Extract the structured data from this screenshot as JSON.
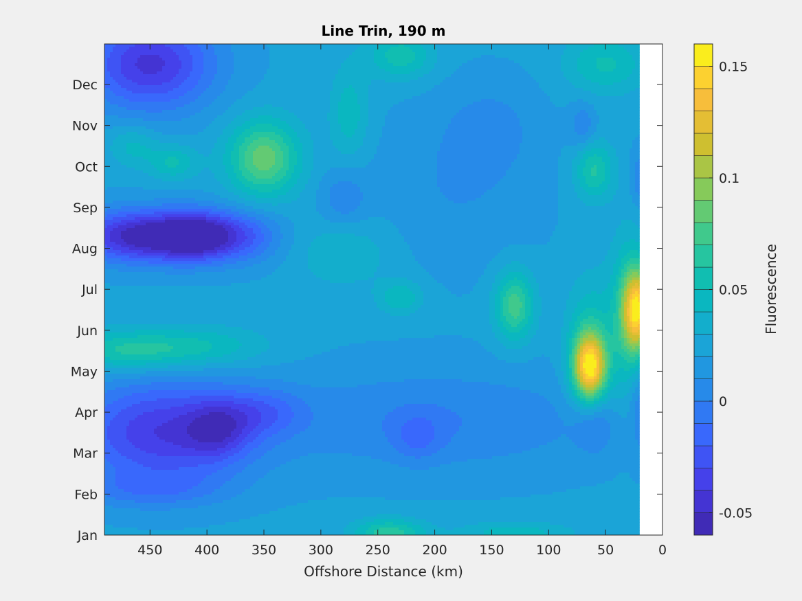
{
  "chart_data": {
    "type": "heatmap",
    "title": "Line Trin, 190 m",
    "xlabel": "Offshore Distance (km)",
    "ylabel": "",
    "colorbar_label": "Fluorescence",
    "x_reversed": true,
    "xlim": [
      0,
      490
    ],
    "data_xlim": [
      20,
      490
    ],
    "x_ticks": [
      450,
      400,
      350,
      300,
      250,
      200,
      150,
      100,
      50,
      0
    ],
    "y_ticks": [
      "Jan",
      "Feb",
      "Mar",
      "Apr",
      "May",
      "Jun",
      "Jul",
      "Aug",
      "Sep",
      "Oct",
      "Nov",
      "Dec"
    ],
    "clim": [
      -0.06,
      0.16
    ],
    "colorbar_ticks": [
      -0.05,
      0,
      0.05,
      0.1,
      0.15
    ],
    "colorbar_tick_labels": [
      "-0.05",
      "0",
      "0.05",
      "0.1",
      "0.15"
    ],
    "colormap": "parula",
    "contour_levels": 22,
    "grid": false,
    "field": {
      "background": 0.022,
      "features": [
        {
          "x": 450,
          "month": 11.5,
          "sx": 40,
          "sy": 0.8,
          "value": -0.065
        },
        {
          "x": 450,
          "month": 7.3,
          "sx": 45,
          "sy": 0.45,
          "value": -0.085
        },
        {
          "x": 410,
          "month": 7.3,
          "sx": 20,
          "sy": 0.4,
          "value": -0.045
        },
        {
          "x": 370,
          "month": 7.3,
          "sx": 25,
          "sy": 0.45,
          "value": -0.035
        },
        {
          "x": 440,
          "month": 2.5,
          "sx": 55,
          "sy": 0.9,
          "value": -0.06
        },
        {
          "x": 390,
          "month": 2.6,
          "sx": 20,
          "sy": 0.5,
          "value": -0.035
        },
        {
          "x": 350,
          "month": 3,
          "sx": 25,
          "sy": 0.4,
          "value": -0.025
        },
        {
          "x": 450,
          "month": 1.1,
          "sx": 45,
          "sy": 0.3,
          "value": -0.02
        },
        {
          "x": 470,
          "month": 4.5,
          "sx": 40,
          "sy": 0.35,
          "value": 0.04
        },
        {
          "x": 400,
          "month": 4.6,
          "sx": 40,
          "sy": 0.35,
          "value": 0.025
        },
        {
          "x": 350,
          "month": 9.2,
          "sx": 22,
          "sy": 0.65,
          "value": 0.065
        },
        {
          "x": 430,
          "month": 9.1,
          "sx": 15,
          "sy": 0.3,
          "value": 0.03
        },
        {
          "x": 465,
          "month": 9.5,
          "sx": 15,
          "sy": 0.35,
          "value": 0.022
        },
        {
          "x": 275,
          "month": 10.3,
          "sx": 12,
          "sy": 0.8,
          "value": 0.025
        },
        {
          "x": 230,
          "month": 11.7,
          "sx": 20,
          "sy": 0.4,
          "value": 0.035
        },
        {
          "x": 280,
          "month": 6.9,
          "sx": 30,
          "sy": 0.6,
          "value": 0.018
        },
        {
          "x": 230,
          "month": 5.8,
          "sx": 14,
          "sy": 0.3,
          "value": 0.028
        },
        {
          "x": 130,
          "month": 5.6,
          "sx": 12,
          "sy": 0.6,
          "value": 0.055
        },
        {
          "x": 240,
          "month": 0.05,
          "sx": 22,
          "sy": 0.25,
          "value": 0.045
        },
        {
          "x": 130,
          "month": 0.05,
          "sx": 35,
          "sy": 0.2,
          "value": 0.025
        },
        {
          "x": 64,
          "month": 4.1,
          "sx": 10,
          "sy": 0.55,
          "value": 0.115
        },
        {
          "x": 64,
          "month": 4.6,
          "sx": 14,
          "sy": 1.1,
          "value": 0.035
        },
        {
          "x": 22,
          "month": 5.5,
          "sx": 9,
          "sy": 0.7,
          "value": 0.11
        },
        {
          "x": 30,
          "month": 5.3,
          "sx": 12,
          "sy": 1.4,
          "value": 0.035
        },
        {
          "x": 60,
          "month": 8.9,
          "sx": 12,
          "sy": 0.5,
          "value": 0.04
        },
        {
          "x": 50,
          "month": 11.5,
          "sx": 25,
          "sy": 0.5,
          "value": 0.03
        },
        {
          "x": 60,
          "month": 2.7,
          "sx": 12,
          "sy": 0.5,
          "value": -0.02
        },
        {
          "x": 70,
          "month": 10.0,
          "sx": 8,
          "sy": 0.4,
          "value": -0.02
        },
        {
          "x": 20,
          "month": 3.2,
          "sx": 6,
          "sy": 0.8,
          "value": -0.02
        },
        {
          "x": 20,
          "month": 8.7,
          "sx": 6,
          "sy": 0.5,
          "value": -0.02
        },
        {
          "x": 180,
          "month": 8.5,
          "sx": 50,
          "sy": 1.4,
          "value": -0.012
        },
        {
          "x": 200,
          "month": 2.8,
          "sx": 110,
          "sy": 0.9,
          "value": -0.022
        },
        {
          "x": 215,
          "month": 2.4,
          "sx": 15,
          "sy": 0.4,
          "value": -0.02
        },
        {
          "x": 280,
          "month": 8.2,
          "sx": 15,
          "sy": 0.5,
          "value": -0.02
        },
        {
          "x": 150,
          "month": 10.0,
          "sx": 30,
          "sy": 0.8,
          "value": -0.012
        }
      ]
    }
  }
}
